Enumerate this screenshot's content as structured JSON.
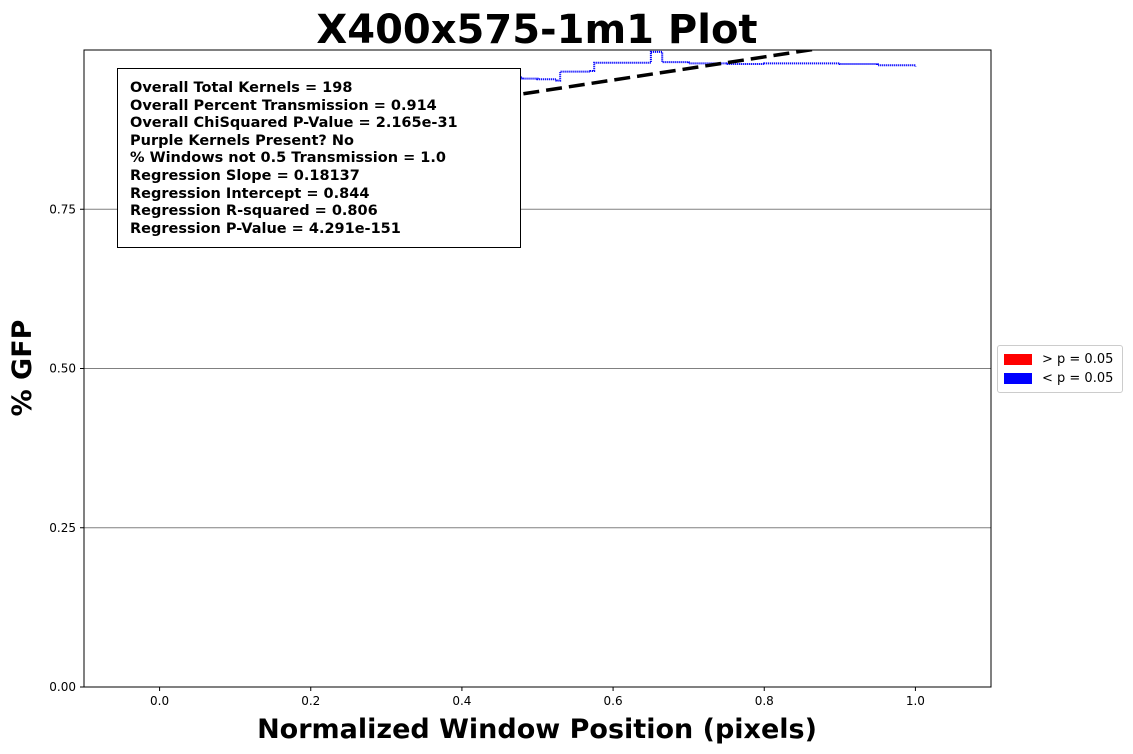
{
  "chart_data": {
    "type": "line",
    "title": "X400x575-1m1 Plot",
    "xlabel": "Normalized Window Position (pixels)",
    "ylabel": "% GFP",
    "xlim": [
      -0.1,
      1.1
    ],
    "ylim": [
      0.0,
      1.0
    ],
    "x_ticks": [
      0.0,
      0.2,
      0.4,
      0.6,
      0.8,
      1.0
    ],
    "x_tick_labels": [
      "0.0",
      "0.2",
      "0.4",
      "0.6",
      "0.8",
      "1.0"
    ],
    "y_ticks": [
      0.0,
      0.25,
      0.5,
      0.75
    ],
    "y_tick_labels": [
      "0.00",
      "0.25",
      "0.50",
      "0.75"
    ],
    "grid": "horizontal",
    "series": [
      {
        "name": "< p = 0.05",
        "color": "#0000ff",
        "style": "dotted",
        "x": [
          0.4,
          0.44,
          0.48,
          0.5,
          0.525,
          0.53,
          0.57,
          0.575,
          0.64,
          0.65,
          0.66,
          0.665,
          0.7,
          0.75,
          0.8,
          0.85,
          0.9,
          0.95,
          1.0
        ],
        "y": [
          0.955,
          0.957,
          0.955,
          0.954,
          0.952,
          0.966,
          0.967,
          0.98,
          0.98,
          0.997,
          0.997,
          0.981,
          0.979,
          0.978,
          0.979,
          0.979,
          0.978,
          0.976,
          0.974
        ]
      },
      {
        "name": "Regression",
        "color": "#000000",
        "style": "dashed",
        "x": [
          0.0,
          1.0
        ],
        "y": [
          0.844,
          1.02537
        ]
      }
    ]
  },
  "stats_box": {
    "lines": [
      "Overall Total Kernels = 198",
      "Overall Percent Transmission = 0.914",
      "Overall ChiSquared P-Value = 2.165e-31",
      "Purple Kernels Present? No",
      "% Windows not 0.5 Transmission = 1.0",
      "Regression Slope = 0.18137",
      "Regression Intercept = 0.844",
      "Regression R-squared = 0.806",
      "Regression P-Value = 4.291e-151"
    ]
  },
  "legend": {
    "placement": "center-right-outside",
    "items": [
      {
        "label": "> p = 0.05",
        "color": "#ff0000"
      },
      {
        "label": "< p = 0.05",
        "color": "#0000ff"
      }
    ]
  }
}
